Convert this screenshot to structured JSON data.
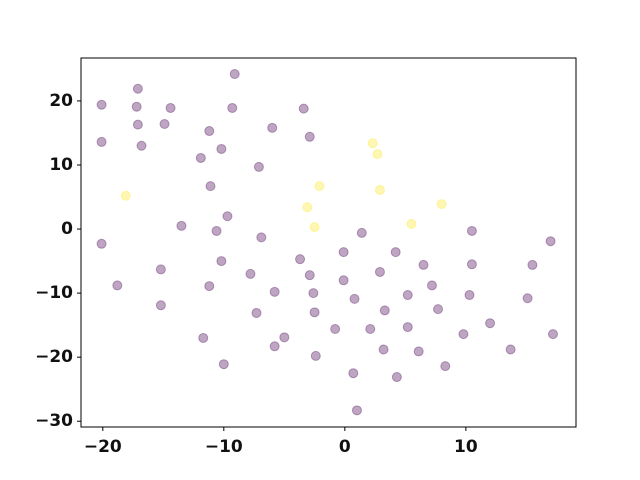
{
  "chart_data": {
    "type": "scatter",
    "xlim": [
      -21.8,
      19.1
    ],
    "ylim": [
      -30.9,
      26.7
    ],
    "xticks": [
      {
        "value": -20,
        "label": "−20"
      },
      {
        "value": -10,
        "label": "−10"
      },
      0,
      10
    ],
    "yticks": [
      {
        "value": -30,
        "label": "−30"
      },
      {
        "value": -20,
        "label": "−20"
      },
      {
        "value": -10,
        "label": "−10"
      },
      0,
      10,
      20
    ],
    "opacity": 0.35,
    "series": [
      {
        "color": "#440154",
        "x": [
          -20.1,
          -20.1,
          -20.1,
          -18.8,
          -17.1,
          -17.2,
          -17.1,
          -16.8,
          -14.9,
          -14.4,
          -15.2,
          -15.2,
          -13.5,
          -11.2,
          -11.9,
          -11.1,
          -10.2,
          -10.6,
          -9.7,
          -10.2,
          -11.2,
          -11.7,
          -10.0,
          -9.1,
          -9.3,
          -7.1,
          -6.9,
          -7.8,
          -7.3,
          -6.0,
          -5.8,
          -5.8,
          -5.0,
          -3.4,
          -2.9,
          -3.7,
          -2.9,
          -2.6,
          -2.5,
          -2.4,
          -0.8,
          -0.1,
          -0.1,
          0.8,
          1.4,
          0.7,
          1.0,
          2.1,
          2.9,
          3.3,
          3.2,
          4.2,
          4.3,
          5.2,
          5.2,
          6.1,
          6.5,
          7.2,
          7.7,
          8.3,
          9.8,
          10.5,
          10.5,
          10.3,
          12.0,
          13.7,
          15.1,
          15.5,
          17.0,
          17.2
        ],
        "values": [
          19.4,
          13.6,
          -2.3,
          -8.8,
          21.9,
          19.1,
          16.3,
          13.0,
          16.4,
          18.9,
          -6.3,
          -11.9,
          0.5,
          15.3,
          11.1,
          6.7,
          12.5,
          -0.3,
          2.0,
          -5.0,
          -8.9,
          -17.0,
          -21.1,
          24.2,
          18.9,
          9.7,
          -1.3,
          -7.0,
          -13.1,
          15.8,
          -9.8,
          -18.3,
          -16.9,
          18.8,
          14.4,
          -4.7,
          -7.2,
          -10.0,
          -13.0,
          -19.8,
          -15.6,
          -3.6,
          -8.0,
          -10.9,
          -0.6,
          -22.5,
          -28.3,
          -15.6,
          -6.7,
          -12.7,
          -18.8,
          -3.6,
          -23.1,
          -10.3,
          -15.3,
          -19.1,
          -5.6,
          -8.8,
          -12.5,
          -21.4,
          -16.4,
          -0.3,
          -5.5,
          -10.3,
          -14.7,
          -18.8,
          -10.8,
          -5.6,
          -1.9,
          -16.4
        ]
      },
      {
        "color": "#fde725",
        "x": [
          -18.1,
          -3.1,
          -2.1,
          -2.5,
          2.3,
          2.7,
          2.9,
          5.5,
          8.0
        ],
        "values": [
          5.2,
          3.4,
          6.7,
          0.3,
          13.4,
          11.7,
          6.1,
          0.8,
          3.9
        ]
      }
    ]
  }
}
